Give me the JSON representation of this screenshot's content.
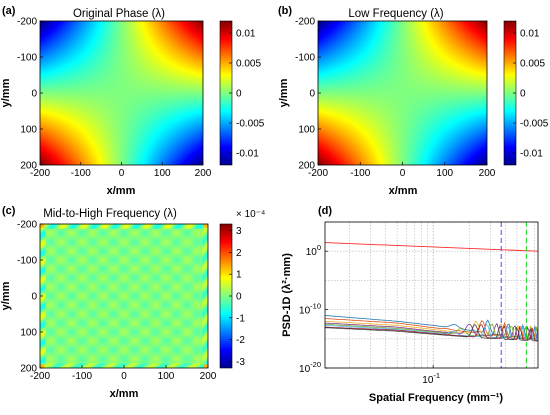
{
  "chart_data": [
    {
      "id": "a",
      "type": "heatmap",
      "panel_label": "(a)",
      "title": "Original Phase (λ)",
      "xlabel": "x/mm",
      "ylabel": "y/mm",
      "xlim": [
        -200,
        200
      ],
      "ylim": [
        -200,
        200
      ],
      "y_reversed": true,
      "xticks": [
        -200,
        -100,
        0,
        100,
        200
      ],
      "yticks": [
        -200,
        -100,
        0,
        100,
        200
      ],
      "colorbar": {
        "min": -0.012,
        "max": 0.012,
        "ticks": [
          0.01,
          0.005,
          0,
          -0.005,
          -0.01
        ],
        "tick_labels": [
          "0.01",
          "0.005",
          "0",
          "-0.005",
          "-0.01"
        ]
      },
      "pattern": "saddle: z = -k·x·y, max at top-right and bottom-left, min at top-left and bottom-right"
    },
    {
      "id": "b",
      "type": "heatmap",
      "panel_label": "(b)",
      "title": "Low Frequency (λ)",
      "xlabel": "x/mm",
      "ylabel": "y/mm",
      "xlim": [
        -200,
        200
      ],
      "ylim": [
        -200,
        200
      ],
      "y_reversed": true,
      "xticks": [
        -200,
        -100,
        0,
        100,
        200
      ],
      "yticks": [
        -200,
        -100,
        0,
        100,
        200
      ],
      "colorbar": {
        "min": -0.012,
        "max": 0.012,
        "ticks": [
          0.01,
          0.005,
          0,
          -0.005,
          -0.01
        ],
        "tick_labels": [
          "0.01",
          "0.005",
          "0",
          "-0.005",
          "-0.01"
        ]
      },
      "pattern": "saddle: z = -k·x·y, max at top-right and bottom-left, min at top-left and bottom-right"
    },
    {
      "id": "c",
      "type": "heatmap",
      "panel_label": "(c)",
      "title": "Mid-to-High Frequency (λ)",
      "xlabel": "x/mm",
      "ylabel": "y/mm",
      "xlim": [
        -200,
        200
      ],
      "ylim": [
        -200,
        200
      ],
      "y_reversed": true,
      "xticks": [
        -200,
        -100,
        0,
        100,
        200
      ],
      "yticks": [
        -200,
        -100,
        0,
        100,
        200
      ],
      "colorbar": {
        "min": -3.3,
        "max": 3.3,
        "exponent_label": "× 10⁻⁴",
        "ticks": [
          3,
          2,
          1,
          0,
          -1,
          -2,
          -3
        ],
        "tick_labels": [
          "3",
          "2",
          "1",
          "0",
          "-1",
          "-2",
          "-3"
        ]
      },
      "pattern": "small periodic ripple near zero (~0.3e-4 amplitude) with square grid of cells"
    },
    {
      "id": "d",
      "type": "line",
      "panel_label": "(d)",
      "xlabel": "Spatial Frequency (mm⁻¹)",
      "ylabel": "PSD-1D (λ²·mm)",
      "x_scale": "log",
      "y_scale": "log",
      "xlim": [
        0.0125,
        0.75
      ],
      "ylim": [
        1e-20,
        100000.0
      ],
      "grid": true,
      "yticks": [
        1e-20,
        1e-10,
        1.0
      ],
      "ytick_labels": [
        [
          "10",
          "-20"
        ],
        [
          "10",
          "-10"
        ],
        [
          "10",
          "0"
        ]
      ],
      "xticks": [
        0.1
      ],
      "xtick_labels": [
        [
          "10",
          "-1"
        ]
      ],
      "series": [
        {
          "color": "#ff2a2a",
          "points": [
            [
              0.0125,
              30.0
            ],
            [
              0.75,
              1.0
            ]
          ]
        },
        {
          "color": "#1f77b4",
          "points": [
            [
              0.0125,
              1e-11
            ],
            [
              0.05,
              1e-12
            ],
            [
              0.1,
              2e-13
            ],
            [
              0.2,
              3e-14
            ],
            [
              0.35,
              5e-15
            ],
            [
              0.75,
              1e-15
            ]
          ]
        },
        {
          "color": "#d95319",
          "points": [
            [
              0.0125,
              3e-12
            ],
            [
              0.05,
              5e-13
            ],
            [
              0.1,
              8e-14
            ],
            [
              0.2,
              1.5e-14
            ],
            [
              0.35,
              4e-15
            ],
            [
              0.75,
              1e-15
            ]
          ]
        },
        {
          "color": "#edb120",
          "points": [
            [
              0.0125,
              1e-12
            ],
            [
              0.05,
              2e-13
            ],
            [
              0.1,
              4e-14
            ],
            [
              0.2,
              8e-15
            ],
            [
              0.35,
              3e-15
            ],
            [
              0.75,
              9e-16
            ]
          ]
        },
        {
          "color": "#7e2f8e",
          "points": [
            [
              0.0125,
              5e-13
            ],
            [
              0.05,
              1e-13
            ],
            [
              0.1,
              2e-14
            ],
            [
              0.2,
              6e-15
            ],
            [
              0.35,
              2.5e-15
            ],
            [
              0.75,
              8e-16
            ]
          ]
        },
        {
          "color": "#77ac30",
          "points": [
            [
              0.0125,
              3e-13
            ],
            [
              0.05,
              6e-14
            ],
            [
              0.1,
              1.5e-14
            ],
            [
              0.2,
              4e-15
            ],
            [
              0.35,
              2e-15
            ],
            [
              0.75,
              7e-16
            ]
          ]
        },
        {
          "color": "#4dbeee",
          "points": [
            [
              0.0125,
              2e-13
            ],
            [
              0.05,
              4e-14
            ],
            [
              0.1,
              1e-14
            ],
            [
              0.2,
              3e-15
            ],
            [
              0.35,
              1.5e-15
            ],
            [
              0.75,
              6e-16
            ]
          ]
        },
        {
          "color": "#a2142f",
          "points": [
            [
              0.0125,
              1e-13
            ],
            [
              0.05,
              3e-14
            ],
            [
              0.1,
              8e-15
            ],
            [
              0.2,
              2.5e-15
            ],
            [
              0.35,
              1.2e-15
            ],
            [
              0.75,
              5e-16
            ]
          ]
        },
        {
          "color": "#444444",
          "points": [
            [
              0.0125,
              8e-14
            ],
            [
              0.05,
              2e-14
            ],
            [
              0.1,
              6e-15
            ],
            [
              0.2,
              2e-15
            ],
            [
              0.35,
              1e-15
            ],
            [
              0.75,
              4e-16
            ]
          ]
        }
      ],
      "vlines": [
        {
          "x": 0.37,
          "color": "#4a5cff",
          "style": "dashed"
        },
        {
          "x": 0.6,
          "color": "#22dd22",
          "style": "dashed"
        }
      ]
    }
  ]
}
